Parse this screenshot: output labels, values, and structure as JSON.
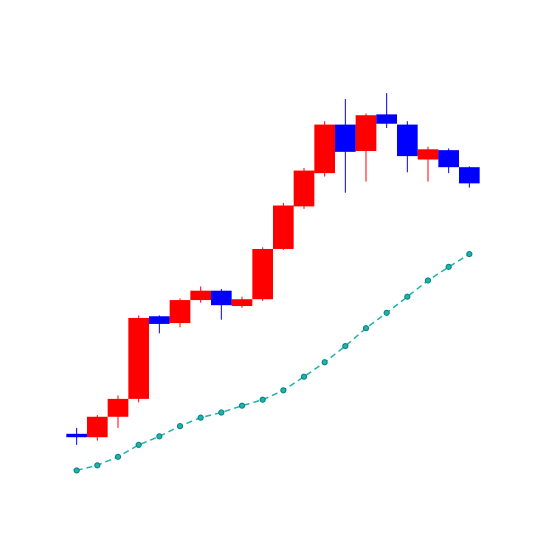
{
  "chart_data": {
    "type": "candlestick",
    "title": "",
    "xlabel": "",
    "ylabel": "",
    "axes_visible": false,
    "grid": false,
    "legend": "none",
    "ylim": [
      3.0,
      57.0
    ],
    "colors": {
      "up": "#ff0000",
      "down": "#0000ff",
      "line": "#20b2aa",
      "marker": "#008080"
    },
    "candles": [
      {
        "x": 1,
        "open": 10.3,
        "high": 11.0,
        "low": 9.0,
        "close": 9.9
      },
      {
        "x": 2,
        "open": 9.9,
        "high": 12.5,
        "low": 9.5,
        "close": 12.3
      },
      {
        "x": 3,
        "open": 12.3,
        "high": 14.8,
        "low": 11.0,
        "close": 14.4
      },
      {
        "x": 4,
        "open": 14.4,
        "high": 24.2,
        "low": 14.0,
        "close": 23.9
      },
      {
        "x": 5,
        "open": 24.1,
        "high": 24.2,
        "low": 22.1,
        "close": 23.2
      },
      {
        "x": 6,
        "open": 23.3,
        "high": 26.2,
        "low": 22.8,
        "close": 26.0
      },
      {
        "x": 7,
        "open": 26.0,
        "high": 27.6,
        "low": 25.7,
        "close": 27.1
      },
      {
        "x": 8,
        "open": 27.1,
        "high": 27.3,
        "low": 23.7,
        "close": 25.4
      },
      {
        "x": 9,
        "open": 25.3,
        "high": 26.4,
        "low": 25.1,
        "close": 26.1
      },
      {
        "x": 10,
        "open": 26.1,
        "high": 32.2,
        "low": 25.9,
        "close": 32.0
      },
      {
        "x": 11,
        "open": 32.0,
        "high": 37.4,
        "low": 31.9,
        "close": 37.1
      },
      {
        "x": 12,
        "open": 37.0,
        "high": 41.5,
        "low": 36.7,
        "close": 41.2
      },
      {
        "x": 13,
        "open": 40.9,
        "high": 47.0,
        "low": 40.5,
        "close": 46.6
      },
      {
        "x": 14,
        "open": 46.6,
        "high": 49.6,
        "low": 38.6,
        "close": 43.4
      },
      {
        "x": 15,
        "open": 43.5,
        "high": 47.9,
        "low": 39.9,
        "close": 47.7
      },
      {
        "x": 16,
        "open": 47.8,
        "high": 50.3,
        "low": 46.2,
        "close": 46.7
      },
      {
        "x": 17,
        "open": 46.6,
        "high": 47.0,
        "low": 41.0,
        "close": 42.9
      },
      {
        "x": 18,
        "open": 42.5,
        "high": 44.0,
        "low": 39.9,
        "close": 43.7
      },
      {
        "x": 19,
        "open": 43.6,
        "high": 43.8,
        "low": 40.9,
        "close": 41.6
      },
      {
        "x": 20,
        "open": 41.6,
        "high": 41.7,
        "low": 39.2,
        "close": 39.7
      }
    ],
    "line_series": {
      "x": [
        1,
        2,
        3,
        4,
        5,
        6,
        7,
        8,
        9,
        10,
        11,
        12,
        13,
        14,
        15,
        16,
        17,
        18,
        19,
        20
      ],
      "values": [
        6.0,
        6.6,
        7.6,
        9.0,
        10.0,
        11.2,
        12.2,
        12.8,
        13.6,
        14.3,
        15.4,
        17.0,
        18.7,
        20.6,
        22.7,
        24.5,
        26.4,
        28.3,
        29.9,
        31.4
      ]
    }
  }
}
